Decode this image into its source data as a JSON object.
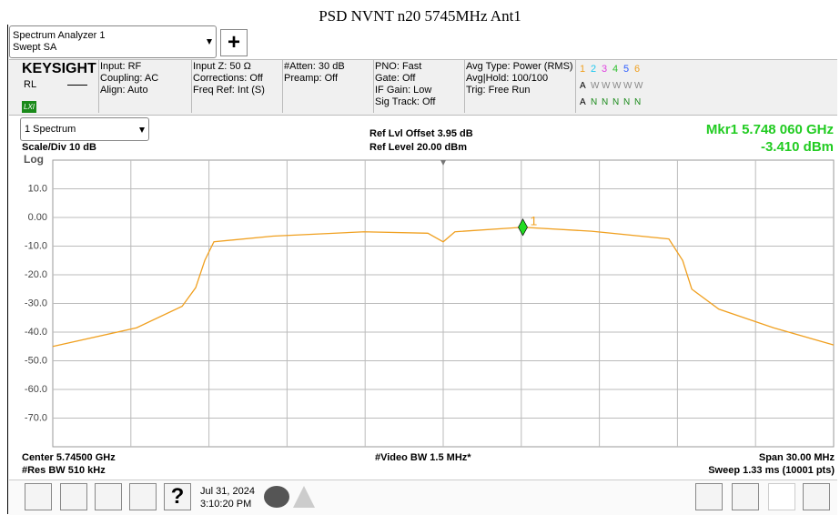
{
  "title": "PSD NVNT n20 5745MHz Ant1",
  "app": {
    "name": "Spectrum Analyzer 1",
    "mode": "Swept SA",
    "plus": "+"
  },
  "brand": {
    "name": "KEYSIGHT",
    "rl": "RL",
    "lxi": "LXI"
  },
  "settings": [
    [
      "Input: RF",
      "Coupling: AC",
      "Align: Auto"
    ],
    [
      "Input Z: 50 Ω",
      "Corrections: Off",
      "Freq Ref: Int (S)"
    ],
    [
      "#Atten: 30 dB",
      "Preamp: Off"
    ],
    [
      "PNO: Fast",
      "Gate: Off",
      "IF Gain: Low",
      "Sig Track: Off"
    ],
    [
      "Avg Type: Power (RMS)",
      "Avg|Hold: 100/100",
      "Trig: Free Run"
    ]
  ],
  "traces": {
    "numbers": [
      "1",
      "2",
      "3",
      "4",
      "5",
      "6"
    ],
    "colors": [
      "#f0a020",
      "#1ec8f0",
      "#e040e0",
      "#30c030",
      "#3060ff",
      "#f0a020"
    ],
    "type_row": [
      "A",
      "W",
      "W",
      "W",
      "W",
      "W"
    ],
    "det_row": [
      "A",
      "N",
      "N",
      "N",
      "N",
      "N"
    ]
  },
  "window": {
    "selector": "1 Spectrum",
    "ref_offset": "Ref Lvl Offset 3.95 dB",
    "ref_level": "Ref Level 20.00 dBm",
    "scale": "Scale/Div 10 dB",
    "log": "Log"
  },
  "marker": {
    "label": "Mkr1 5.748 060 GHz",
    "reading": "-3.410 dBm",
    "tag": "1",
    "x": 5.74806,
    "value": -3.41
  },
  "chart_data": {
    "type": "line",
    "color": "#f0a020",
    "x": [
      5.73,
      5.73322,
      5.73497,
      5.73549,
      5.73584,
      5.73619,
      5.73846,
      5.74196,
      5.74441,
      5.745,
      5.74545,
      5.74806,
      5.7507,
      5.75367,
      5.7542,
      5.75455,
      5.75559,
      5.75769,
      5.76
    ],
    "values": [
      -45,
      -38.5,
      -31,
      -24.5,
      -15,
      -8.5,
      -6.5,
      -5,
      -5.5,
      -8.5,
      -5,
      -3.41,
      -4.8,
      -7.5,
      -15,
      -25,
      -32,
      -38.5,
      -44.5
    ],
    "xlim": [
      5.73,
      5.76
    ],
    "ylim": [
      -80,
      20
    ],
    "yticks": [
      {
        "value": 10,
        "label": "10.0"
      },
      {
        "value": 0,
        "label": "0.00"
      },
      {
        "value": -10,
        "label": "-10.0"
      },
      {
        "value": -20,
        "label": "-20.0"
      },
      {
        "value": -30,
        "label": "-30.0"
      },
      {
        "value": -40,
        "label": "-40.0"
      },
      {
        "value": -50,
        "label": "-50.0"
      },
      {
        "value": -60,
        "label": "-60.0"
      },
      {
        "value": -70,
        "label": "-70.0"
      }
    ],
    "grid": true
  },
  "footer": {
    "center": "Center 5.74500 GHz",
    "rbw": "#Res BW 510 kHz",
    "vbw": "#Video BW 1.5 MHz*",
    "span": "Span 30.00 MHz",
    "sweep": "Sweep 1.33 ms (10001 pts)"
  },
  "taskbar": {
    "help": "?",
    "date": "Jul 31, 2024",
    "time": "3:10:20 PM"
  }
}
